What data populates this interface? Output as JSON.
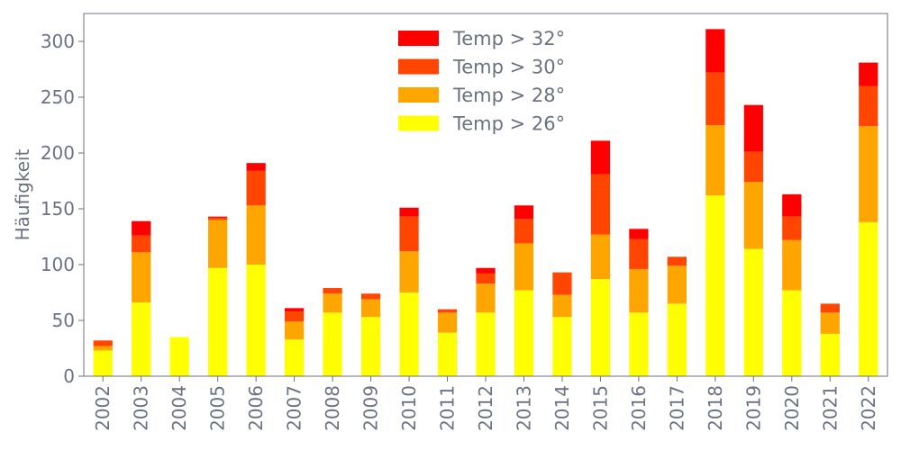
{
  "chart_data": {
    "type": "bar",
    "stacked": true,
    "categories": [
      "2002",
      "2003",
      "2004",
      "2005",
      "2006",
      "2007",
      "2008",
      "2009",
      "2010",
      "2011",
      "2012",
      "2013",
      "2014",
      "2015",
      "2016",
      "2017",
      "2018",
      "2019",
      "2020",
      "2021",
      "2022"
    ],
    "series": [
      {
        "name": "Temp > 26°",
        "color": "#ffff00",
        "values": [
          23,
          66,
          35,
          97,
          100,
          33,
          57,
          53,
          75,
          39,
          57,
          77,
          53,
          87,
          57,
          65,
          162,
          114,
          77,
          38,
          138
        ]
      },
      {
        "name": "Temp > 28°",
        "color": "#ffa500",
        "values": [
          4,
          45,
          0,
          43,
          53,
          16,
          17,
          16,
          37,
          18,
          26,
          42,
          20,
          40,
          39,
          34,
          63,
          60,
          45,
          19,
          86
        ]
      },
      {
        "name": "Temp > 30°",
        "color": "#ff4500",
        "values": [
          5,
          15,
          0,
          2,
          31,
          9,
          5,
          5,
          31,
          3,
          9,
          22,
          20,
          54,
          27,
          8,
          47,
          27,
          21,
          8,
          36
        ]
      },
      {
        "name": "Temp > 32°",
        "color": "#ff0000",
        "values": [
          0,
          13,
          0,
          1,
          7,
          3,
          0,
          0,
          8,
          0,
          5,
          12,
          0,
          30,
          9,
          0,
          39,
          42,
          20,
          0,
          21
        ]
      }
    ],
    "ylabel": "Häufigkeit",
    "xlabel": "",
    "ylim": [
      0,
      325
    ],
    "yticks": [
      0,
      50,
      100,
      150,
      200,
      250,
      300
    ],
    "grid": false,
    "legend_position": "top-center"
  }
}
